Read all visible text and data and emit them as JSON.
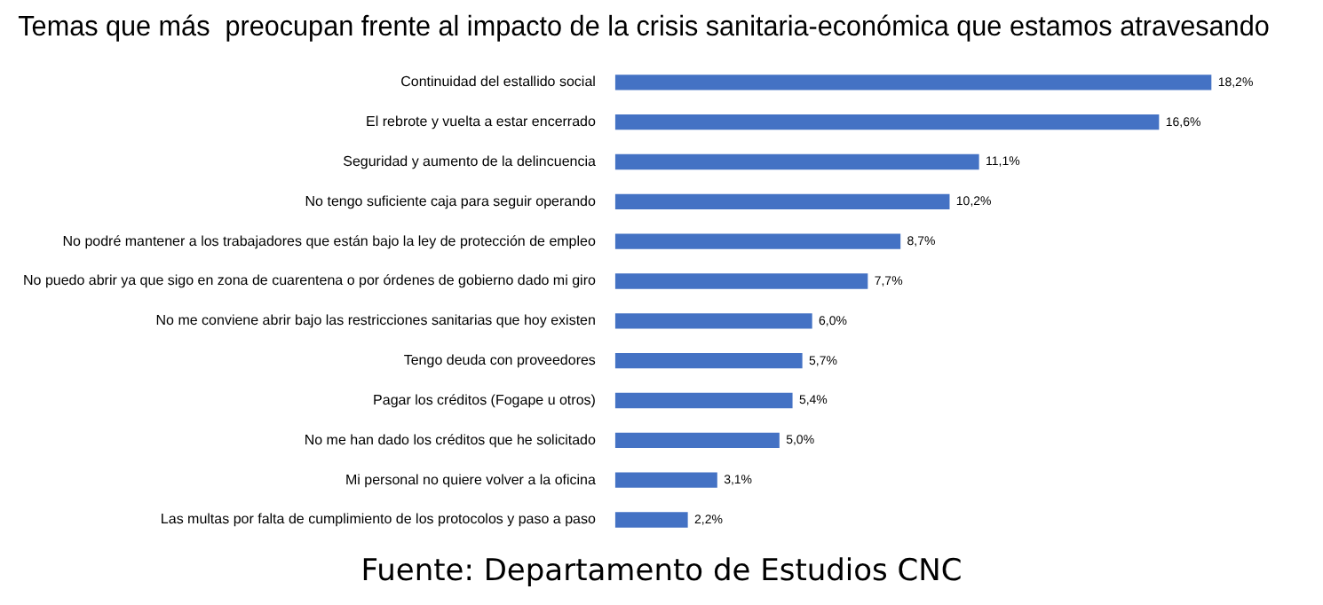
{
  "chart_data": {
    "type": "bar",
    "orientation": "horizontal",
    "title": "Temas que más  preocupan frente al impacto de la crisis sanitaria-económica que estamos atravesando",
    "categories": [
      "Continuidad del estallido social",
      "El rebrote y vuelta a estar encerrado",
      "Seguridad y aumento de la delincuencia",
      "No tengo suficiente caja para seguir operando",
      "No podré mantener a los trabajadores que están bajo la ley de protección de empleo",
      "No puedo abrir ya que sigo en zona de cuarentena o por órdenes de gobierno dado mi giro",
      "No me conviene abrir bajo las restricciones sanitarias que hoy existen",
      "Tengo deuda con proveedores",
      "Pagar los créditos (Fogape u otros)",
      "No me han dado los créditos que he solicitado",
      "Mi personal no quiere volver a la oficina",
      "Las multas por falta de cumplimiento de los protocolos y paso a paso"
    ],
    "values": [
      18.2,
      16.6,
      11.1,
      10.2,
      8.7,
      7.7,
      6.0,
      5.7,
      5.4,
      5.0,
      3.1,
      2.2
    ],
    "value_labels": [
      "18,2%",
      "16,6%",
      "11,1%",
      "10,2%",
      "8,7%",
      "7,7%",
      "6,0%",
      "5,7%",
      "5,4%",
      "5,0%",
      "3,1%",
      "2,2%"
    ],
    "color": "#4472c4",
    "tick_labels": "y",
    "grid": false,
    "legend": false,
    "annotations": [
      "Fuente: Departamento de Estudios CNC"
    ]
  }
}
